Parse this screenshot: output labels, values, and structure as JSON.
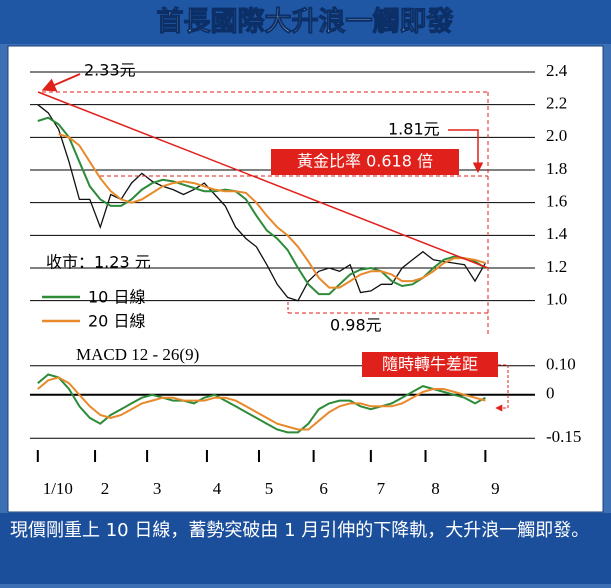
{
  "header": {
    "title": "首長國際大升浪一觸即發"
  },
  "caption": "現價剛重上 10 日線，蓄勢突破由 1 月引伸的下降軌，大升浪一觸即發。",
  "chart_data": [
    {
      "type": "line",
      "x": [
        0,
        4,
        8,
        12,
        16,
        20,
        24,
        28,
        32,
        36,
        40,
        44,
        48,
        52,
        56,
        60,
        64,
        68,
        72,
        76,
        80,
        84,
        88,
        92,
        96,
        100,
        104,
        108,
        112,
        116,
        120,
        124,
        128,
        132,
        136,
        140,
        144,
        148,
        152,
        156,
        160,
        164,
        168,
        172
      ],
      "xlim": [
        -3,
        188
      ],
      "ylim": [
        0.9,
        2.4
      ],
      "yticks": [
        {
          "value": 1,
          "label": "1.0"
        },
        1.2,
        1.4,
        1.6,
        1.8,
        {
          "value": 2,
          "label": "2.0"
        },
        2.2,
        2.4
      ],
      "grid": true,
      "series": [
        {
          "color": "#111111",
          "values": [
            2.2,
            2.15,
            2.05,
            1.85,
            1.62,
            1.62,
            1.45,
            1.65,
            1.62,
            1.72,
            1.78,
            1.73,
            1.7,
            1.68,
            1.65,
            1.68,
            1.72,
            1.65,
            1.58,
            1.45,
            1.38,
            1.33,
            1.22,
            1.1,
            1.02,
            1.0,
            1.12,
            1.18,
            1.2,
            1.18,
            1.22,
            1.05,
            1.06,
            1.1,
            1.1,
            1.2,
            1.25,
            1.3,
            1.25,
            1.24,
            1.23,
            1.22,
            1.12,
            1.23
          ]
        },
        {
          "name": "10 日線",
          "color": "#2e8b3a",
          "values": [
            2.1,
            2.12,
            2.08,
            2.0,
            1.85,
            1.7,
            1.62,
            1.58,
            1.58,
            1.62,
            1.68,
            1.72,
            1.74,
            1.73,
            1.71,
            1.69,
            1.67,
            1.67,
            1.68,
            1.67,
            1.62,
            1.52,
            1.43,
            1.38,
            1.31,
            1.2,
            1.1,
            1.04,
            1.04,
            1.1,
            1.16,
            1.19,
            1.2,
            1.18,
            1.12,
            1.09,
            1.1,
            1.14,
            1.2,
            1.25,
            1.27,
            1.26,
            1.24,
            1.2
          ]
        },
        {
          "name": "20 日線",
          "color": "#e8892b",
          "values": [
            null,
            null,
            2.02,
            2.0,
            1.95,
            1.85,
            1.75,
            1.67,
            1.62,
            1.6,
            1.62,
            1.66,
            1.7,
            1.72,
            1.73,
            1.72,
            1.7,
            1.68,
            1.67,
            1.67,
            1.66,
            1.6,
            1.52,
            1.45,
            1.4,
            1.33,
            1.24,
            1.14,
            1.08,
            1.08,
            1.12,
            1.16,
            1.18,
            1.18,
            1.16,
            1.12,
            1.12,
            1.14,
            1.18,
            1.23,
            1.26,
            1.26,
            1.25,
            1.23
          ]
        }
      ],
      "annotations": [
        "2.33元",
        "1.81元",
        "黃金比率 0.618 倍",
        "收市：1.23 元",
        "0.98元"
      ]
    },
    {
      "type": "line",
      "title": "MACD 12 - 26(9)",
      "x": [
        0,
        4,
        8,
        12,
        16,
        20,
        24,
        28,
        32,
        36,
        40,
        44,
        48,
        52,
        56,
        60,
        64,
        68,
        72,
        76,
        80,
        84,
        88,
        92,
        96,
        100,
        104,
        108,
        112,
        116,
        120,
        124,
        128,
        132,
        136,
        140,
        144,
        148,
        152,
        156,
        160,
        164,
        168,
        172
      ],
      "xlim": [
        -3,
        188
      ],
      "ylim": [
        -0.17,
        0.12
      ],
      "yticks": [
        {
          "value": 0.1,
          "label": "0.10"
        },
        0,
        -0.15
      ],
      "xticks": [
        {
          "value": 0,
          "label": "1/10"
        },
        {
          "value": 22,
          "label": "2"
        },
        {
          "value": 42,
          "label": "3"
        },
        {
          "value": 65,
          "label": "4"
        },
        {
          "value": 85,
          "label": "5"
        },
        {
          "value": 106,
          "label": "6"
        },
        {
          "value": 128,
          "label": "7"
        },
        {
          "value": 149,
          "label": "8"
        },
        {
          "value": 172,
          "label": "9"
        }
      ],
      "series": [
        {
          "color": "#2e8b3a",
          "values": [
            0.04,
            0.07,
            0.06,
            0.02,
            -0.04,
            -0.08,
            -0.1,
            -0.07,
            -0.05,
            -0.03,
            -0.01,
            0.0,
            -0.01,
            -0.02,
            -0.02,
            -0.03,
            -0.01,
            0.0,
            -0.02,
            -0.04,
            -0.06,
            -0.08,
            -0.1,
            -0.12,
            -0.13,
            -0.13,
            -0.1,
            -0.05,
            -0.03,
            -0.02,
            -0.02,
            -0.04,
            -0.05,
            -0.04,
            -0.03,
            -0.01,
            0.01,
            0.03,
            0.02,
            0.01,
            0.0,
            -0.01,
            -0.03,
            -0.01
          ]
        },
        {
          "color": "#e8892b",
          "values": [
            0.02,
            0.05,
            0.06,
            0.04,
            0.0,
            -0.04,
            -0.07,
            -0.08,
            -0.07,
            -0.05,
            -0.03,
            -0.02,
            -0.01,
            -0.01,
            -0.02,
            -0.02,
            -0.02,
            -0.01,
            -0.01,
            -0.02,
            -0.04,
            -0.06,
            -0.08,
            -0.1,
            -0.11,
            -0.12,
            -0.12,
            -0.09,
            -0.06,
            -0.04,
            -0.03,
            -0.03,
            -0.04,
            -0.04,
            -0.04,
            -0.03,
            -0.01,
            0.01,
            0.02,
            0.02,
            0.01,
            0.0,
            -0.01,
            -0.02
          ]
        }
      ],
      "annotations": [
        "隨時轉牛差距"
      ]
    }
  ]
}
